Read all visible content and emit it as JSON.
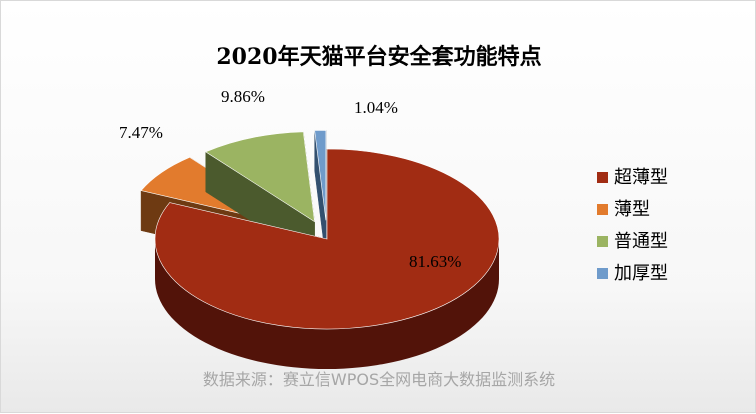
{
  "chart_data": {
    "type": "pie",
    "title": "2020年天猫平台安全套功能特点",
    "categories": [
      "超薄型",
      "薄型",
      "普通型",
      "加厚型"
    ],
    "values": [
      81.63,
      7.47,
      9.86,
      1.04
    ],
    "labels": [
      "81.63%",
      "7.47%",
      "9.86%",
      "1.04%"
    ],
    "colors": [
      "#a12c13",
      "#e27b2d",
      "#9bb462",
      "#6f9bcb"
    ],
    "side_colors": [
      "#521309",
      "#6e3a12",
      "#4b5a2d",
      "#33506f"
    ],
    "legend_position": "right",
    "exploded": true,
    "three_d": true
  },
  "source_text": "数据来源：赛立信WPOS全网电商大数据监测系统"
}
